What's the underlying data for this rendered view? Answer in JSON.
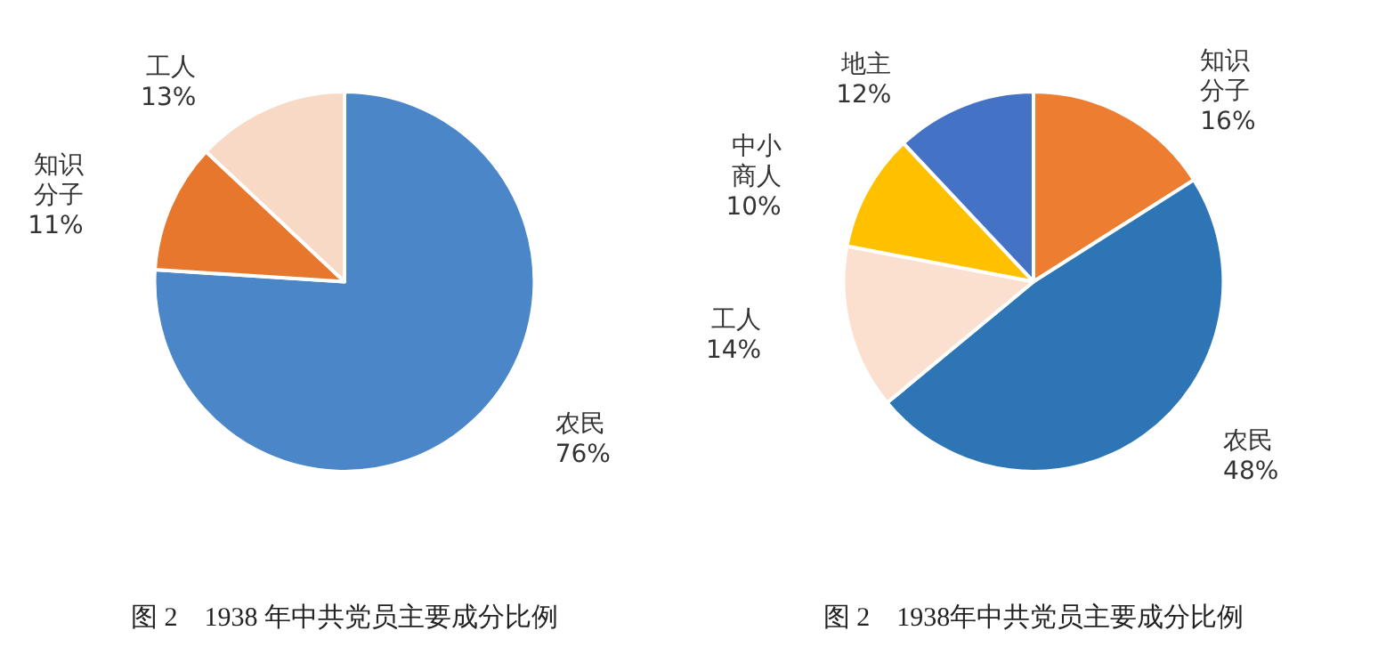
{
  "chart_data": [
    {
      "type": "pie",
      "title": "图 2　1938 年中共党员主要成分比例",
      "categories": [
        "农民",
        "知识分子",
        "工人"
      ],
      "values": [
        76,
        11,
        13
      ],
      "value_labels": [
        "76%",
        "11%",
        "13%"
      ],
      "colors": [
        "#4a86c8",
        "#e8772e",
        "#f8d9c5"
      ]
    },
    {
      "type": "pie",
      "title": "图 2　1938年中共党员主要成分比例",
      "categories": [
        "知识分子",
        "农民",
        "工人",
        "中小商人",
        "地主"
      ],
      "values": [
        16,
        48,
        14,
        10,
        12
      ],
      "value_labels": [
        "16%",
        "48%",
        "14%",
        "10%",
        "12%"
      ],
      "colors": [
        "#ed7d31",
        "#2e75b6",
        "#fbe0d0",
        "#ffc000",
        "#4472c4"
      ]
    }
  ]
}
